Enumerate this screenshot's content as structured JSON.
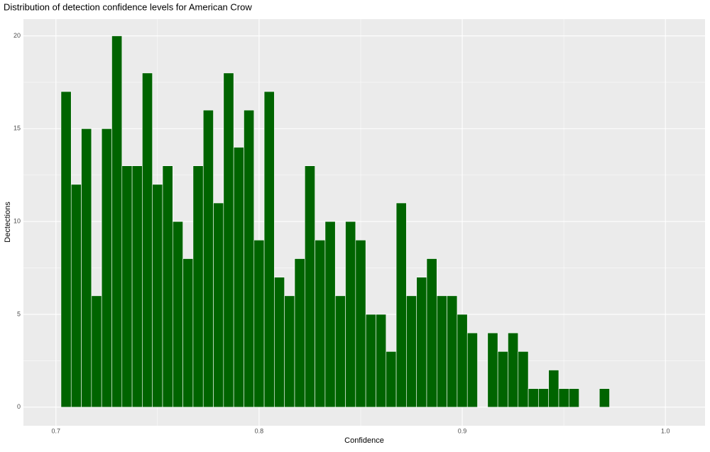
{
  "chart_data": {
    "type": "histogram",
    "title": "Distribution of detection confidence levels for American Crow",
    "x_label": "Confidence",
    "y_label": "Dectections",
    "bins": [
      0.7025,
      0.7075,
      0.7125,
      0.7175,
      0.7225,
      0.7275,
      0.7325,
      0.7375,
      0.7425,
      0.7475,
      0.7525,
      0.7575,
      0.7625,
      0.7675,
      0.7725,
      0.7775,
      0.7825,
      0.7875,
      0.7925,
      0.7975,
      0.8025,
      0.8075,
      0.8125,
      0.8175,
      0.8225,
      0.8275,
      0.8325,
      0.8375,
      0.8425,
      0.8475,
      0.8525,
      0.8575,
      0.8625,
      0.8675,
      0.8725,
      0.8775,
      0.8825,
      0.8875,
      0.8925,
      0.8975,
      0.9025,
      0.9075,
      0.9125,
      0.9175,
      0.9225,
      0.9275,
      0.9325,
      0.9375,
      0.9425,
      0.9475,
      0.9525,
      0.9575,
      0.9625,
      0.9675,
      0.9725
    ],
    "values": [
      17,
      12,
      15,
      6,
      15,
      20,
      13,
      13,
      18,
      12,
      13,
      10,
      8,
      13,
      16,
      11,
      18,
      14,
      16,
      9,
      17,
      7,
      6,
      8,
      13,
      9,
      10,
      6,
      10,
      9,
      5,
      5,
      3,
      11,
      6,
      7,
      8,
      6,
      6,
      5,
      4,
      0,
      4,
      3,
      4,
      3,
      1,
      1,
      2,
      1,
      1,
      0,
      0,
      1
    ],
    "color": "#006400",
    "xlim": [
      0.684,
      1.0195
    ],
    "xticks": [
      0.7,
      0.8,
      0.9,
      {
        "value": 1,
        "label": "1.0"
      }
    ],
    "ylim": [
      -1,
      20.9
    ],
    "yticks": [
      0,
      5,
      10,
      15,
      20
    ],
    "grid": true
  }
}
